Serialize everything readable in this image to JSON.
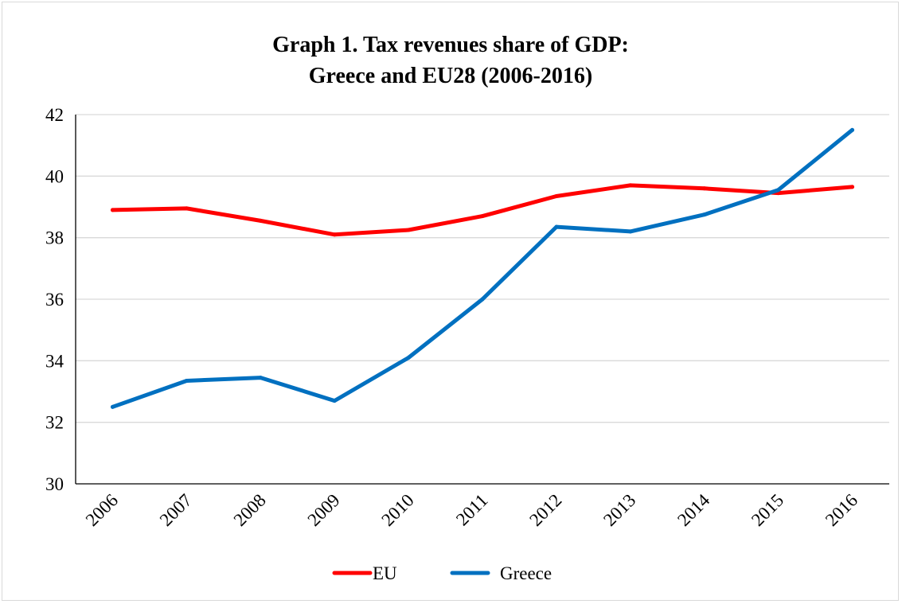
{
  "chart_data": {
    "type": "line",
    "title": "Graph 1. Tax revenues share of GDP:",
    "subtitle": "Greece and EU28  (2006-2016)",
    "xlabel": "",
    "ylabel": "",
    "categories": [
      "2006",
      "2007",
      "2008",
      "2009",
      "2010",
      "2011",
      "2012",
      "2013",
      "2014",
      "2015",
      "2016"
    ],
    "series": [
      {
        "name": "EU",
        "color": "#ff0000",
        "values": [
          38.9,
          38.95,
          38.55,
          38.1,
          38.25,
          38.7,
          39.35,
          39.7,
          39.6,
          39.45,
          39.65
        ]
      },
      {
        "name": "Greece",
        "color": "#0070c0",
        "values": [
          32.5,
          33.35,
          33.45,
          32.7,
          34.1,
          36.0,
          38.35,
          38.2,
          38.75,
          39.55,
          41.5
        ]
      }
    ],
    "ylim": [
      30,
      42
    ],
    "yticks": [
      "30",
      "32",
      "34",
      "36",
      "38",
      "40",
      "42"
    ],
    "grid": true,
    "legend_position": "bottom"
  }
}
